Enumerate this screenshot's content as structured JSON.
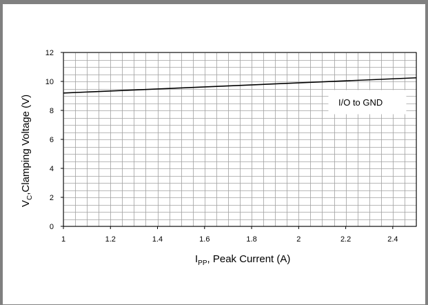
{
  "chart_data": {
    "type": "line",
    "xlabel_main": "I",
    "xlabel_sub": "PP",
    "xlabel_rest": ", Peak Current (A)",
    "ylabel_main": "V",
    "ylabel_sub": "C",
    "ylabel_rest": ",Clamping Voltage (V)",
    "xlim": [
      1,
      2.5
    ],
    "ylim": [
      0,
      12
    ],
    "x_ticks": [
      1,
      1.2,
      1.4,
      1.6,
      1.8,
      2,
      2.2,
      2.4
    ],
    "x_tick_labels": [
      "1",
      "1.2",
      "1.4",
      "1.6",
      "1.8",
      "2",
      "2.2",
      "2.4"
    ],
    "y_ticks": [
      0,
      2,
      4,
      6,
      8,
      10,
      12
    ],
    "y_tick_labels": [
      "0",
      "2",
      "4",
      "6",
      "8",
      "10",
      "12"
    ],
    "grid": true,
    "legend_position": "top-right",
    "series": [
      {
        "name": "I/O to GND",
        "color": "#000000",
        "x": [
          1,
          2.5
        ],
        "y": [
          9.2,
          10.25
        ]
      }
    ]
  }
}
